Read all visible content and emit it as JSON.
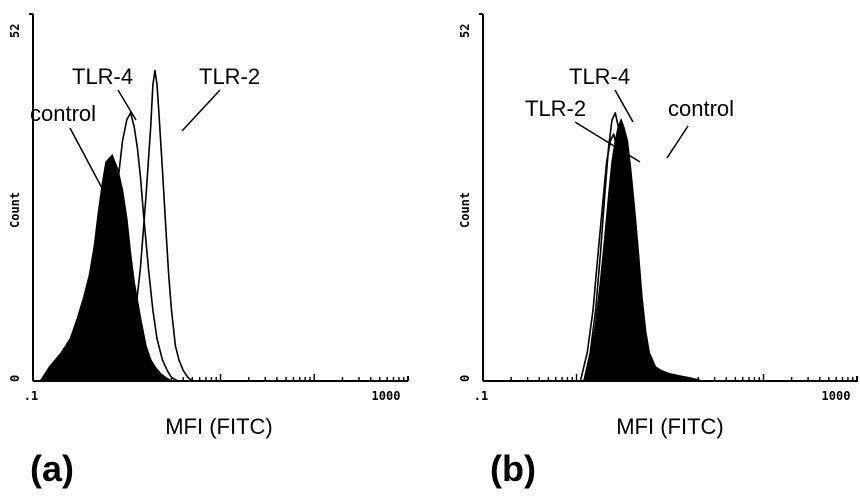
{
  "chart_data": [
    {
      "panel_label": "(a)",
      "type": "area",
      "xlabel": "MFI (FITC)",
      "ylabel": "Count",
      "x_scale": "log",
      "xlim": [
        0.1,
        1000
      ],
      "ylim": [
        0,
        52
      ],
      "x_tick_labels": [
        ".1",
        "1000"
      ],
      "y_tick_labels": [
        "0",
        "52"
      ],
      "series": [
        {
          "name": "control",
          "style": "filled",
          "x": [
            0.12,
            0.15,
            0.2,
            0.25,
            0.3,
            0.35,
            0.4,
            0.45,
            0.5,
            0.55,
            0.6,
            0.7,
            0.8,
            0.9,
            1.0,
            1.1,
            1.2,
            1.4,
            1.6,
            1.8,
            2.0,
            2.3,
            2.6,
            3.0
          ],
          "y": [
            0,
            2,
            4,
            6,
            9,
            12,
            15,
            19,
            24,
            28,
            31,
            32,
            30,
            27,
            23,
            18,
            14,
            9,
            5,
            3,
            2,
            1,
            0.5,
            0
          ]
        },
        {
          "name": "TLR-4",
          "style": "outline",
          "x": [
            0.3,
            0.4,
            0.5,
            0.6,
            0.7,
            0.8,
            0.9,
            1.0,
            1.1,
            1.2,
            1.3,
            1.4,
            1.5,
            1.7,
            1.9,
            2.1,
            2.4,
            2.7,
            3.0,
            3.5
          ],
          "y": [
            0,
            2,
            6,
            12,
            20,
            28,
            34,
            37,
            38,
            36,
            33,
            29,
            24,
            16,
            10,
            6,
            3,
            1.5,
            0.5,
            0
          ]
        },
        {
          "name": "TLR-2",
          "style": "outline",
          "x": [
            0.8,
            1.0,
            1.2,
            1.4,
            1.6,
            1.8,
            1.9,
            2.0,
            2.1,
            2.2,
            2.4,
            2.6,
            2.8,
            3.0,
            3.3,
            3.6,
            4.0,
            4.5,
            5.0
          ],
          "y": [
            0,
            3,
            8,
            16,
            26,
            36,
            42,
            44,
            42,
            38,
            30,
            22,
            15,
            10,
            5,
            3,
            1.5,
            0.5,
            0
          ]
        }
      ],
      "annotations": [
        "control",
        "TLR-4",
        "TLR-2"
      ]
    },
    {
      "panel_label": "(b)",
      "type": "area",
      "xlabel": "MFI (FITC)",
      "ylabel": "Count",
      "x_scale": "log",
      "xlim": [
        0.1,
        1000
      ],
      "ylim": [
        0,
        52
      ],
      "x_tick_labels": [
        ".1",
        "1000"
      ],
      "y_tick_labels": [
        "0",
        "52"
      ],
      "series": [
        {
          "name": "control",
          "style": "filled",
          "x": [
            1.2,
            1.4,
            1.6,
            1.8,
            2.0,
            2.2,
            2.4,
            2.6,
            2.8,
            3.0,
            3.2,
            3.5,
            3.8,
            4.2,
            4.6,
            5.0,
            5.5,
            6.0,
            7.0,
            8.0,
            10,
            13,
            17,
            22
          ],
          "y": [
            0,
            3,
            8,
            14,
            20,
            26,
            31,
            34,
            36,
            37,
            36,
            34,
            30,
            24,
            18,
            12,
            7,
            4,
            2,
            1.5,
            1,
            0.7,
            0.4,
            0
          ]
        },
        {
          "name": "TLR-4",
          "style": "outline",
          "x": [
            1.2,
            1.4,
            1.6,
            1.8,
            2.0,
            2.2,
            2.4,
            2.6,
            2.8,
            3.0,
            3.3,
            3.6,
            4.0,
            4.5,
            5.0,
            6.0,
            7.0
          ],
          "y": [
            0,
            4,
            10,
            18,
            26,
            33,
            37,
            38,
            36,
            33,
            28,
            22,
            15,
            9,
            5,
            2,
            0
          ]
        },
        {
          "name": "TLR-2",
          "style": "outline",
          "x": [
            1.1,
            1.3,
            1.5,
            1.7,
            1.9,
            2.1,
            2.3,
            2.5,
            2.7,
            3.0,
            3.3,
            3.6,
            4.0,
            4.5,
            5.0,
            6.0
          ],
          "y": [
            0,
            4,
            10,
            18,
            25,
            31,
            34,
            35,
            33,
            29,
            24,
            18,
            12,
            7,
            3,
            0
          ]
        }
      ],
      "annotations": [
        "TLR-4",
        "TLR-2",
        "control"
      ]
    }
  ]
}
